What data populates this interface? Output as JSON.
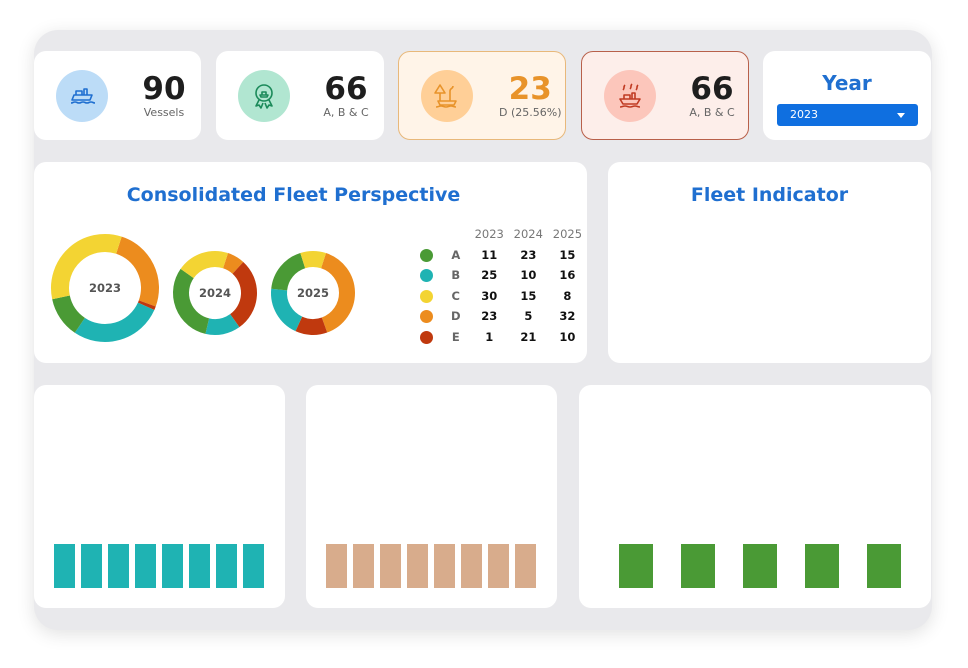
{
  "kpis": [
    {
      "value": "90",
      "label": "Vessels",
      "icon": "ship-icon",
      "bg": "#bcdcf7",
      "fg": "#1f6fd0"
    },
    {
      "value": "66",
      "label": "A, B & C",
      "icon": "award-ship-icon",
      "bg": "#b1e6d1",
      "fg": "#1b8a5a"
    },
    {
      "value": "23",
      "label": "D (25.56%)",
      "icon": "warning-ship-icon",
      "bg": "#ffcf97",
      "fg": "#e8932a"
    },
    {
      "value": "66",
      "label": "A, B & C",
      "icon": "emission-ship-icon",
      "bg": "#fcc6bb",
      "fg": "#c03a22"
    }
  ],
  "year": {
    "title": "Year",
    "selected": "2023"
  },
  "consolidated": {
    "title": "Consolidated Fleet Perspective"
  },
  "fleet_indicator": {
    "title": "Fleet Indicator"
  },
  "chart_data": [
    {
      "type": "pie",
      "title": "Consolidated Fleet Perspective",
      "categories": [
        "A",
        "B",
        "C",
        "D",
        "E"
      ],
      "colors": [
        "#4a9a35",
        "#1fb3b3",
        "#f3d433",
        "#ec8c1e",
        "#c0390e"
      ],
      "years": [
        "2023",
        "2024",
        "2025"
      ],
      "series": [
        {
          "name": "2023",
          "values": [
            11,
            25,
            30,
            23,
            1
          ]
        },
        {
          "name": "2024",
          "values": [
            23,
            10,
            15,
            5,
            21
          ]
        },
        {
          "name": "2025",
          "values": [
            15,
            16,
            8,
            32,
            10
          ]
        }
      ]
    },
    {
      "type": "bar",
      "color": "#1fb3b3",
      "values": [
        1,
        1,
        1,
        1,
        1,
        1,
        1,
        1
      ]
    },
    {
      "type": "bar",
      "color": "#d8ac8c",
      "values": [
        1,
        1,
        1,
        1,
        1,
        1,
        1,
        1
      ]
    },
    {
      "type": "bar",
      "color": "#4a9a35",
      "values": [
        1,
        1,
        1,
        1,
        1
      ]
    }
  ]
}
